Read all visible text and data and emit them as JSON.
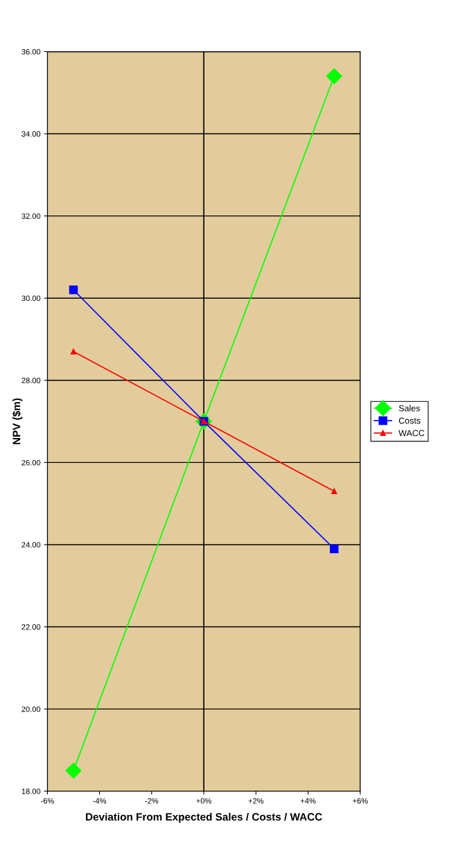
{
  "chart_data": {
    "type": "line",
    "xlabel": "Deviation From Expected Sales / Costs / WACC",
    "ylabel": "NPV ($m)",
    "x": [
      -5,
      0,
      5
    ],
    "series": [
      {
        "name": "Sales",
        "color": "#00ff00",
        "values": [
          18.5,
          27.0,
          35.4
        ],
        "marker": "diamond"
      },
      {
        "name": "Costs",
        "color": "#0000ff",
        "values": [
          30.2,
          27.0,
          23.9
        ],
        "marker": "square"
      },
      {
        "name": "WACC",
        "color": "#ff0000",
        "values": [
          28.7,
          27.0,
          25.3
        ],
        "marker": "triangle"
      }
    ],
    "xlim": [
      -6,
      6
    ],
    "xticks": [
      {
        "value": -6,
        "label": "-6%"
      },
      {
        "value": -4,
        "label": "-4%"
      },
      {
        "value": -2,
        "label": "-2%"
      },
      {
        "value": 0,
        "label": "+0%"
      },
      {
        "value": 2,
        "label": "+2%"
      },
      {
        "value": 4,
        "label": "+4%"
      },
      {
        "value": 6,
        "label": "+6%"
      }
    ],
    "ylim": [
      18,
      36
    ],
    "yticks": [
      {
        "value": 18,
        "label": "18.00"
      },
      {
        "value": 20,
        "label": "20.00"
      },
      {
        "value": 22,
        "label": "22.00"
      },
      {
        "value": 24,
        "label": "24.00"
      },
      {
        "value": 26,
        "label": "26.00"
      },
      {
        "value": 28,
        "label": "28.00"
      },
      {
        "value": 30,
        "label": "30.00"
      },
      {
        "value": 32,
        "label": "32.00"
      },
      {
        "value": 34,
        "label": "34.00"
      },
      {
        "value": 36,
        "label": "36.00"
      }
    ],
    "ref_lines": [
      {
        "axis": "x",
        "value": 0
      }
    ],
    "grid": "y",
    "legend": "right"
  }
}
